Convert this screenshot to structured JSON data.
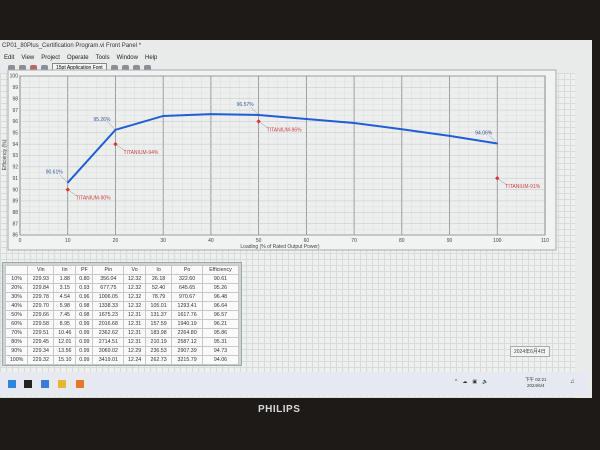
{
  "window": {
    "title": "CP01_80Plus_Certification Program.vi Front Panel *"
  },
  "menu": [
    "Edit",
    "View",
    "Project",
    "Operate",
    "Tools",
    "Window",
    "Help"
  ],
  "toolbar": {
    "font": "15pt Application Font"
  },
  "chart_data": {
    "type": "line",
    "xlabel": "Loading (% of Rated Output Power)",
    "ylabel": "Efficiency (%)",
    "xlim": [
      0,
      110
    ],
    "ylim": [
      86,
      100
    ],
    "xticks": [
      0,
      10,
      20,
      30,
      40,
      50,
      60,
      70,
      80,
      90,
      100,
      110
    ],
    "yticks": [
      86,
      87,
      88,
      89,
      90,
      91,
      92,
      93,
      94,
      95,
      96,
      97,
      98,
      99,
      100
    ],
    "grid": true,
    "series": [
      {
        "x": [
          10,
          20,
          30,
          40,
          50,
          60,
          70,
          80,
          90,
          100
        ],
        "values": [
          90.61,
          95.26,
          96.48,
          96.64,
          96.57,
          96.21,
          95.86,
          95.31,
          94.73,
          94.06
        ],
        "color": "#1f5fd6"
      },
      {
        "x": [
          10,
          20,
          50,
          100
        ],
        "values": [
          90,
          94,
          96,
          91
        ],
        "color": "#e03030",
        "marker": "diamond"
      }
    ],
    "annotations": [
      {
        "x": 10,
        "y": 90.61,
        "text": "90.61%",
        "color": "#3a5a9a"
      },
      {
        "x": 20,
        "y": 95.26,
        "text": "95.26%",
        "color": "#3a5a9a"
      },
      {
        "x": 50,
        "y": 96.57,
        "text": "96.57%",
        "color": "#3a5a9a"
      },
      {
        "x": 100,
        "y": 94.06,
        "text": "94.06%",
        "color": "#3a5a9a"
      },
      {
        "x": 10,
        "y": 90,
        "text": "TITANIUM-90%",
        "color": "#d04040"
      },
      {
        "x": 20,
        "y": 94,
        "text": "TITANIUM-94%",
        "color": "#d04040"
      },
      {
        "x": 50,
        "y": 96,
        "text": "TITANIUM-96%",
        "color": "#d04040"
      },
      {
        "x": 100,
        "y": 91,
        "text": "TITANIUM-91%",
        "color": "#d04040"
      }
    ]
  },
  "table": {
    "headers": [
      "",
      "Vin",
      "Iin",
      "PF",
      "Pin",
      "Vo",
      "Io",
      "Po",
      "Efficiency"
    ],
    "rows": [
      [
        "10%",
        "229.93",
        "1.88",
        "0.80",
        "356.04",
        "12.32",
        "26.18",
        "322.60",
        "90.61"
      ],
      [
        "20%",
        "229.84",
        "3.15",
        "0.93",
        "677.75",
        "12.32",
        "52.40",
        "645.65",
        "95.26"
      ],
      [
        "30%",
        "229.78",
        "4.54",
        "0.96",
        "1006.05",
        "12.32",
        "78.79",
        "970.67",
        "96.48"
      ],
      [
        "40%",
        "229.70",
        "5.98",
        "0.98",
        "1338.33",
        "12.32",
        "105.01",
        "1293.41",
        "96.64"
      ],
      [
        "50%",
        "229.66",
        "7.45",
        "0.98",
        "1675.23",
        "12.31",
        "131.37",
        "1617.76",
        "96.57"
      ],
      [
        "60%",
        "229.58",
        "8.95",
        "0.99",
        "2016.68",
        "12.31",
        "157.59",
        "1940.19",
        "96.21"
      ],
      [
        "70%",
        "229.51",
        "10.46",
        "0.99",
        "2362.62",
        "12.31",
        "183.98",
        "2264.80",
        "95.86"
      ],
      [
        "80%",
        "229.45",
        "12.01",
        "0.99",
        "2714.51",
        "12.31",
        "210.19",
        "2587.12",
        "95.31"
      ],
      [
        "90%",
        "229.34",
        "13.56",
        "0.99",
        "3069.02",
        "12.29",
        "236.53",
        "2907.39",
        "94.73"
      ],
      [
        "100%",
        "229.32",
        "15.10",
        "0.99",
        "3419.01",
        "12.24",
        "262.73",
        "3215.79",
        "94.06"
      ]
    ]
  },
  "date_indicator": "2024年6月4日",
  "taskbar": {
    "time": "下午 02:21",
    "date": "2024/6/4",
    "icons": [
      "windows-start-icon",
      "search-icon",
      "task-view-icon",
      "file-explorer-icon",
      "labview-icon"
    ]
  },
  "monitor": {
    "brand": "PHILIPS"
  }
}
